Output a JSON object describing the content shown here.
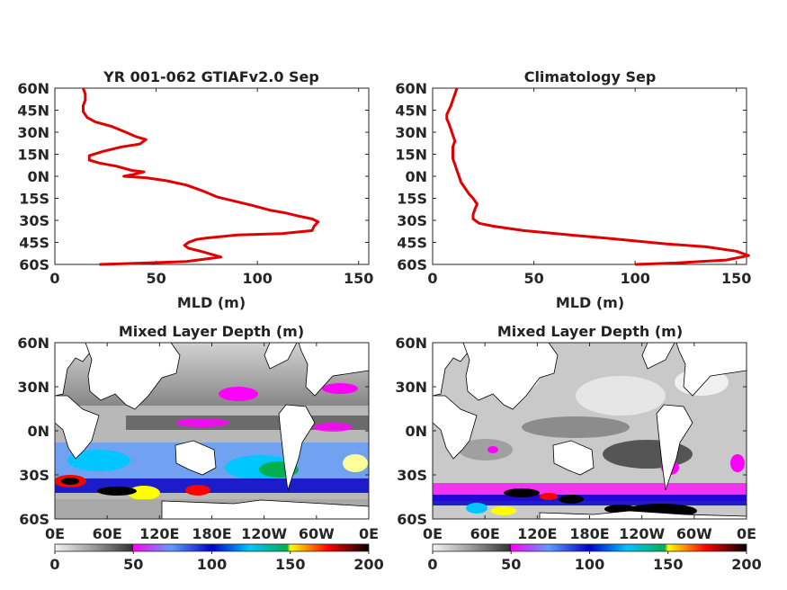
{
  "chart_data": [
    {
      "type": "line",
      "title": "YR 001-062 GTIAFv2.0 Sep",
      "xlabel": "MLD (m)",
      "ylabel": "",
      "xlim": [
        0,
        155
      ],
      "ylim": [
        -60,
        60
      ],
      "x_ticks": [
        "0",
        "50",
        "100",
        "150"
      ],
      "y_ticks": [
        "60N",
        "45N",
        "30N",
        "15N",
        "0N",
        "15S",
        "30S",
        "45S",
        "60S"
      ],
      "series": [
        {
          "color": "#e00000",
          "points": [
            [
              14,
              60
            ],
            [
              15,
              56
            ],
            [
              15,
              52
            ],
            [
              14,
              48
            ],
            [
              14,
              44
            ],
            [
              16,
              40
            ],
            [
              20,
              37
            ],
            [
              28,
              34
            ],
            [
              35,
              30
            ],
            [
              40,
              27
            ],
            [
              45,
              25
            ],
            [
              42,
              22
            ],
            [
              33,
              20
            ],
            [
              24,
              17
            ],
            [
              17,
              14
            ],
            [
              17,
              11
            ],
            [
              22,
              9
            ],
            [
              30,
              7
            ],
            [
              38,
              4
            ],
            [
              44,
              3
            ],
            [
              38,
              1
            ],
            [
              34,
              0
            ],
            [
              45,
              -1
            ],
            [
              55,
              -3
            ],
            [
              65,
              -6
            ],
            [
              73,
              -10
            ],
            [
              80,
              -14
            ],
            [
              89,
              -17
            ],
            [
              98,
              -20
            ],
            [
              106,
              -23
            ],
            [
              114,
              -25
            ],
            [
              120,
              -27
            ],
            [
              127,
              -29
            ],
            [
              130,
              -31
            ],
            [
              128,
              -34
            ],
            [
              127,
              -37
            ],
            [
              112,
              -39
            ],
            [
              90,
              -40
            ],
            [
              75,
              -42
            ],
            [
              70,
              -43
            ],
            [
              66,
              -45
            ],
            [
              64,
              -47
            ],
            [
              66,
              -49
            ],
            [
              72,
              -51
            ],
            [
              82,
              -55
            ],
            [
              65,
              -58
            ],
            [
              45,
              -59
            ],
            [
              22,
              -60
            ]
          ]
        }
      ]
    },
    {
      "type": "line",
      "title": "Climatology Sep",
      "xlabel": "MLD (m)",
      "ylabel": "",
      "xlim": [
        0,
        155
      ],
      "ylim": [
        -60,
        60
      ],
      "x_ticks": [
        "0",
        "50",
        "100",
        "150"
      ],
      "y_ticks": [
        "60N",
        "45N",
        "30N",
        "15N",
        "0N",
        "15S",
        "30S",
        "45S",
        "60S"
      ],
      "series": [
        {
          "color": "#e00000",
          "points": [
            [
              12,
              60
            ],
            [
              11,
              56
            ],
            [
              10,
              52
            ],
            [
              9,
              48
            ],
            [
              8,
              45
            ],
            [
              7,
              42
            ],
            [
              7,
              39
            ],
            [
              8,
              36
            ],
            [
              9,
              32
            ],
            [
              10,
              28
            ],
            [
              11,
              24
            ],
            [
              10,
              20
            ],
            [
              10,
              16
            ],
            [
              10,
              12
            ],
            [
              11,
              8
            ],
            [
              12,
              4
            ],
            [
              13,
              0
            ],
            [
              14,
              -4
            ],
            [
              16,
              -8
            ],
            [
              18,
              -12
            ],
            [
              20,
              -15
            ],
            [
              22,
              -19
            ],
            [
              21,
              -22
            ],
            [
              20,
              -26
            ],
            [
              20,
              -29
            ],
            [
              23,
              -32
            ],
            [
              30,
              -34
            ],
            [
              45,
              -37
            ],
            [
              68,
              -40
            ],
            [
              85,
              -42
            ],
            [
              100,
              -44
            ],
            [
              115,
              -46
            ],
            [
              135,
              -48
            ],
            [
              150,
              -51
            ],
            [
              156,
              -54
            ],
            [
              145,
              -57
            ],
            [
              120,
              -59
            ],
            [
              100,
              -60
            ]
          ]
        }
      ]
    },
    {
      "type": "heatmap",
      "title": "Mixed Layer Depth (m)",
      "xlabel": "",
      "ylabel": "",
      "x_ticks": [
        "0E",
        "60E",
        "120E",
        "180E",
        "120W",
        "60W",
        "0E"
      ],
      "y_ticks": [
        "60N",
        "30N",
        "0N",
        "30S",
        "60S"
      ],
      "colorbar": {
        "range": [
          0,
          200
        ],
        "ticks": [
          "0",
          "50",
          "100",
          "150",
          "200"
        ],
        "stops": [
          "#f2f2f2",
          "#9e9e9e",
          "#3a3a3a",
          "#222222",
          "#ff00ff",
          "#5f9cff",
          "#0000cc",
          "#00c6ff",
          "#00b050",
          "#ffff00",
          "#ff0000",
          "#000000"
        ]
      }
    },
    {
      "type": "heatmap",
      "title": "Mixed Layer Depth (m)",
      "xlabel": "",
      "ylabel": "",
      "x_ticks": [
        "0E",
        "60E",
        "120E",
        "180E",
        "120W",
        "60W",
        "0E"
      ],
      "y_ticks": [
        "60N",
        "30N",
        "0N",
        "30S",
        "60S"
      ],
      "colorbar": {
        "range": [
          0,
          200
        ],
        "ticks": [
          "0",
          "50",
          "100",
          "150",
          "200"
        ],
        "stops": [
          "#f2f2f2",
          "#9e9e9e",
          "#3a3a3a",
          "#222222",
          "#ff00ff",
          "#5f9cff",
          "#0000cc",
          "#00c6ff",
          "#00b050",
          "#ffff00",
          "#ff0000",
          "#000000"
        ]
      }
    }
  ]
}
